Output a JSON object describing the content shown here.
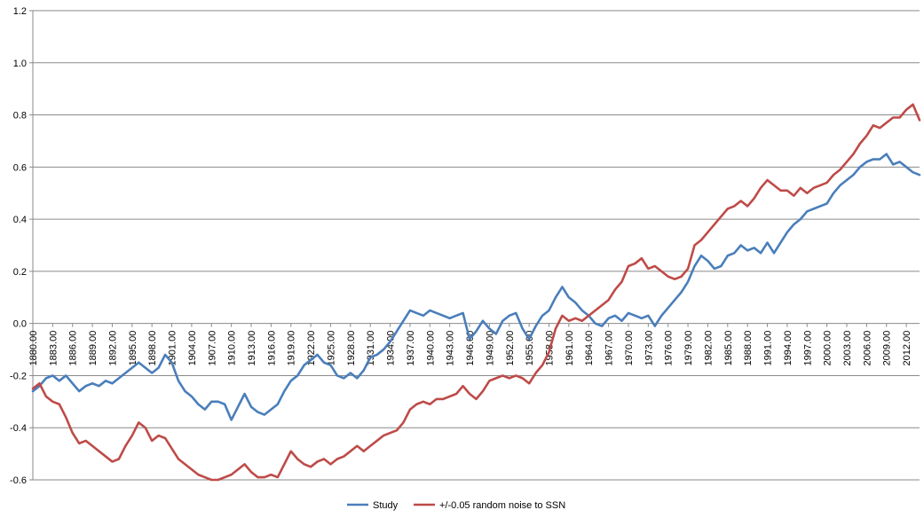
{
  "chart_data": {
    "type": "line",
    "title": "",
    "xlabel": "",
    "ylabel": "",
    "ylim": [
      -0.6,
      1.2
    ],
    "yticks": [
      1.2,
      1.0,
      0.8,
      0.6,
      0.4,
      0.2,
      0.0,
      -0.2,
      -0.4,
      -0.6
    ],
    "ytick_labels": [
      "1.2",
      "1.0",
      "0.8",
      "0.6",
      "0.4",
      "0.2",
      "0.0",
      "-0.2",
      "-0.4",
      "-0.6"
    ],
    "xlim": [
      1880,
      2014
    ],
    "xticks": [
      1880,
      1883,
      1886,
      1889,
      1892,
      1895,
      1898,
      1901,
      1904,
      1907,
      1910,
      1913,
      1916,
      1919,
      1922,
      1925,
      1928,
      1931,
      1934,
      1937,
      1940,
      1943,
      1946,
      1949,
      1952,
      1955,
      1958,
      1961,
      1964,
      1967,
      1970,
      1973,
      1976,
      1979,
      1982,
      1985,
      1988,
      1991,
      1994,
      1997,
      2000,
      2003,
      2006,
      2009,
      2012
    ],
    "xtick_labels": [
      "1880.00",
      "1883.00",
      "1886.00",
      "1889.00",
      "1892.00",
      "1895.00",
      "1898.00",
      "1901.00",
      "1904.00",
      "1907.00",
      "1910.00",
      "1913.00",
      "1916.00",
      "1919.00",
      "1922.00",
      "1925.00",
      "1928.00",
      "1931.00",
      "1934.00",
      "1937.00",
      "1940.00",
      "1943.00",
      "1946.00",
      "1949.00",
      "1952.00",
      "1955.00",
      "1958.00",
      "1961.00",
      "1964.00",
      "1967.00",
      "1970.00",
      "1973.00",
      "1976.00",
      "1979.00",
      "1982.00",
      "1985.00",
      "1988.00",
      "1991.00",
      "1994.00",
      "1997.00",
      "2000.00",
      "2003.00",
      "2006.00",
      "2009.00",
      "2012.00"
    ],
    "grid": true,
    "legend_position": "bottom",
    "series": [
      {
        "name": "Study",
        "color": "#4a7ebb",
        "points": [
          [
            1880,
            -0.26
          ],
          [
            1881,
            -0.24
          ],
          [
            1882,
            -0.21
          ],
          [
            1883,
            -0.2
          ],
          [
            1884,
            -0.22
          ],
          [
            1885,
            -0.2
          ],
          [
            1886,
            -0.23
          ],
          [
            1887,
            -0.26
          ],
          [
            1888,
            -0.24
          ],
          [
            1889,
            -0.23
          ],
          [
            1890,
            -0.24
          ],
          [
            1891,
            -0.22
          ],
          [
            1892,
            -0.23
          ],
          [
            1893,
            -0.21
          ],
          [
            1894,
            -0.19
          ],
          [
            1895,
            -0.17
          ],
          [
            1896,
            -0.15
          ],
          [
            1897,
            -0.17
          ],
          [
            1898,
            -0.19
          ],
          [
            1899,
            -0.17
          ],
          [
            1900,
            -0.12
          ],
          [
            1901,
            -0.15
          ],
          [
            1902,
            -0.22
          ],
          [
            1903,
            -0.26
          ],
          [
            1904,
            -0.28
          ],
          [
            1905,
            -0.31
          ],
          [
            1906,
            -0.33
          ],
          [
            1907,
            -0.3
          ],
          [
            1908,
            -0.3
          ],
          [
            1909,
            -0.31
          ],
          [
            1910,
            -0.37
          ],
          [
            1911,
            -0.32
          ],
          [
            1912,
            -0.27
          ],
          [
            1913,
            -0.32
          ],
          [
            1914,
            -0.34
          ],
          [
            1915,
            -0.35
          ],
          [
            1916,
            -0.33
          ],
          [
            1917,
            -0.31
          ],
          [
            1918,
            -0.26
          ],
          [
            1919,
            -0.22
          ],
          [
            1920,
            -0.2
          ],
          [
            1921,
            -0.16
          ],
          [
            1922,
            -0.14
          ],
          [
            1923,
            -0.12
          ],
          [
            1924,
            -0.15
          ],
          [
            1925,
            -0.16
          ],
          [
            1926,
            -0.2
          ],
          [
            1927,
            -0.21
          ],
          [
            1928,
            -0.19
          ],
          [
            1929,
            -0.21
          ],
          [
            1930,
            -0.18
          ],
          [
            1931,
            -0.13
          ],
          [
            1932,
            -0.12
          ],
          [
            1933,
            -0.1
          ],
          [
            1934,
            -0.07
          ],
          [
            1935,
            -0.03
          ],
          [
            1936,
            0.01
          ],
          [
            1937,
            0.05
          ],
          [
            1938,
            0.04
          ],
          [
            1939,
            0.03
          ],
          [
            1940,
            0.05
          ],
          [
            1941,
            0.04
          ],
          [
            1942,
            0.03
          ],
          [
            1943,
            0.02
          ],
          [
            1944,
            0.03
          ],
          [
            1945,
            0.04
          ],
          [
            1946,
            -0.06
          ],
          [
            1947,
            -0.03
          ],
          [
            1948,
            0.01
          ],
          [
            1949,
            -0.02
          ],
          [
            1950,
            -0.04
          ],
          [
            1951,
            0.01
          ],
          [
            1952,
            0.03
          ],
          [
            1953,
            0.04
          ],
          [
            1954,
            -0.02
          ],
          [
            1955,
            -0.06
          ],
          [
            1956,
            -0.01
          ],
          [
            1957,
            0.03
          ],
          [
            1958,
            0.05
          ],
          [
            1959,
            0.1
          ],
          [
            1960,
            0.14
          ],
          [
            1961,
            0.1
          ],
          [
            1962,
            0.08
          ],
          [
            1963,
            0.05
          ],
          [
            1964,
            0.03
          ],
          [
            1965,
            0.0
          ],
          [
            1966,
            -0.01
          ],
          [
            1967,
            0.02
          ],
          [
            1968,
            0.03
          ],
          [
            1969,
            0.01
          ],
          [
            1970,
            0.04
          ],
          [
            1971,
            0.03
          ],
          [
            1972,
            0.02
          ],
          [
            1973,
            0.03
          ],
          [
            1974,
            -0.01
          ],
          [
            1975,
            0.03
          ],
          [
            1976,
            0.06
          ],
          [
            1977,
            0.09
          ],
          [
            1978,
            0.12
          ],
          [
            1979,
            0.16
          ],
          [
            1980,
            0.22
          ],
          [
            1981,
            0.26
          ],
          [
            1982,
            0.24
          ],
          [
            1983,
            0.21
          ],
          [
            1984,
            0.22
          ],
          [
            1985,
            0.26
          ],
          [
            1986,
            0.27
          ],
          [
            1987,
            0.3
          ],
          [
            1988,
            0.28
          ],
          [
            1989,
            0.29
          ],
          [
            1990,
            0.27
          ],
          [
            1991,
            0.31
          ],
          [
            1992,
            0.27
          ],
          [
            1993,
            0.31
          ],
          [
            1994,
            0.35
          ],
          [
            1995,
            0.38
          ],
          [
            1996,
            0.4
          ],
          [
            1997,
            0.43
          ],
          [
            1998,
            0.44
          ],
          [
            1999,
            0.45
          ],
          [
            2000,
            0.46
          ],
          [
            2001,
            0.5
          ],
          [
            2002,
            0.53
          ],
          [
            2003,
            0.55
          ],
          [
            2004,
            0.57
          ],
          [
            2005,
            0.6
          ],
          [
            2006,
            0.62
          ],
          [
            2007,
            0.63
          ],
          [
            2008,
            0.63
          ],
          [
            2009,
            0.65
          ],
          [
            2010,
            0.61
          ],
          [
            2011,
            0.62
          ],
          [
            2012,
            0.6
          ],
          [
            2013,
            0.58
          ],
          [
            2014,
            0.57
          ]
        ]
      },
      {
        "name": "+/-0.05 random noise to SSN",
        "color": "#be4b48",
        "points": [
          [
            1880,
            -0.25
          ],
          [
            1881,
            -0.23
          ],
          [
            1882,
            -0.28
          ],
          [
            1883,
            -0.3
          ],
          [
            1884,
            -0.31
          ],
          [
            1885,
            -0.36
          ],
          [
            1886,
            -0.42
          ],
          [
            1887,
            -0.46
          ],
          [
            1888,
            -0.45
          ],
          [
            1889,
            -0.47
          ],
          [
            1890,
            -0.49
          ],
          [
            1891,
            -0.51
          ],
          [
            1892,
            -0.53
          ],
          [
            1893,
            -0.52
          ],
          [
            1894,
            -0.47
          ],
          [
            1895,
            -0.43
          ],
          [
            1896,
            -0.38
          ],
          [
            1897,
            -0.4
          ],
          [
            1898,
            -0.45
          ],
          [
            1899,
            -0.43
          ],
          [
            1900,
            -0.44
          ],
          [
            1901,
            -0.48
          ],
          [
            1902,
            -0.52
          ],
          [
            1903,
            -0.54
          ],
          [
            1904,
            -0.56
          ],
          [
            1905,
            -0.58
          ],
          [
            1906,
            -0.59
          ],
          [
            1907,
            -0.6
          ],
          [
            1908,
            -0.6
          ],
          [
            1909,
            -0.59
          ],
          [
            1910,
            -0.58
          ],
          [
            1911,
            -0.56
          ],
          [
            1912,
            -0.54
          ],
          [
            1913,
            -0.57
          ],
          [
            1914,
            -0.59
          ],
          [
            1915,
            -0.59
          ],
          [
            1916,
            -0.58
          ],
          [
            1917,
            -0.59
          ],
          [
            1918,
            -0.54
          ],
          [
            1919,
            -0.49
          ],
          [
            1920,
            -0.52
          ],
          [
            1921,
            -0.54
          ],
          [
            1922,
            -0.55
          ],
          [
            1923,
            -0.53
          ],
          [
            1924,
            -0.52
          ],
          [
            1925,
            -0.54
          ],
          [
            1926,
            -0.52
          ],
          [
            1927,
            -0.51
          ],
          [
            1928,
            -0.49
          ],
          [
            1929,
            -0.47
          ],
          [
            1930,
            -0.49
          ],
          [
            1931,
            -0.47
          ],
          [
            1932,
            -0.45
          ],
          [
            1933,
            -0.43
          ],
          [
            1934,
            -0.42
          ],
          [
            1935,
            -0.41
          ],
          [
            1936,
            -0.38
          ],
          [
            1937,
            -0.33
          ],
          [
            1938,
            -0.31
          ],
          [
            1939,
            -0.3
          ],
          [
            1940,
            -0.31
          ],
          [
            1941,
            -0.29
          ],
          [
            1942,
            -0.29
          ],
          [
            1943,
            -0.28
          ],
          [
            1944,
            -0.27
          ],
          [
            1945,
            -0.24
          ],
          [
            1946,
            -0.27
          ],
          [
            1947,
            -0.29
          ],
          [
            1948,
            -0.26
          ],
          [
            1949,
            -0.22
          ],
          [
            1950,
            -0.21
          ],
          [
            1951,
            -0.2
          ],
          [
            1952,
            -0.21
          ],
          [
            1953,
            -0.2
          ],
          [
            1954,
            -0.21
          ],
          [
            1955,
            -0.23
          ],
          [
            1956,
            -0.19
          ],
          [
            1957,
            -0.16
          ],
          [
            1958,
            -0.11
          ],
          [
            1959,
            -0.02
          ],
          [
            1960,
            0.03
          ],
          [
            1961,
            0.01
          ],
          [
            1962,
            0.02
          ],
          [
            1963,
            0.01
          ],
          [
            1964,
            0.03
          ],
          [
            1965,
            0.05
          ],
          [
            1966,
            0.07
          ],
          [
            1967,
            0.09
          ],
          [
            1968,
            0.13
          ],
          [
            1969,
            0.16
          ],
          [
            1970,
            0.22
          ],
          [
            1971,
            0.23
          ],
          [
            1972,
            0.25
          ],
          [
            1973,
            0.21
          ],
          [
            1974,
            0.22
          ],
          [
            1975,
            0.2
          ],
          [
            1976,
            0.18
          ],
          [
            1977,
            0.17
          ],
          [
            1978,
            0.18
          ],
          [
            1979,
            0.21
          ],
          [
            1980,
            0.3
          ],
          [
            1981,
            0.32
          ],
          [
            1982,
            0.35
          ],
          [
            1983,
            0.38
          ],
          [
            1984,
            0.41
          ],
          [
            1985,
            0.44
          ],
          [
            1986,
            0.45
          ],
          [
            1987,
            0.47
          ],
          [
            1988,
            0.45
          ],
          [
            1989,
            0.48
          ],
          [
            1990,
            0.52
          ],
          [
            1991,
            0.55
          ],
          [
            1992,
            0.53
          ],
          [
            1993,
            0.51
          ],
          [
            1994,
            0.51
          ],
          [
            1995,
            0.49
          ],
          [
            1996,
            0.52
          ],
          [
            1997,
            0.5
          ],
          [
            1998,
            0.52
          ],
          [
            1999,
            0.53
          ],
          [
            2000,
            0.54
          ],
          [
            2001,
            0.57
          ],
          [
            2002,
            0.59
          ],
          [
            2003,
            0.62
          ],
          [
            2004,
            0.65
          ],
          [
            2005,
            0.69
          ],
          [
            2006,
            0.72
          ],
          [
            2007,
            0.76
          ],
          [
            2008,
            0.75
          ],
          [
            2009,
            0.77
          ],
          [
            2010,
            0.79
          ],
          [
            2011,
            0.79
          ],
          [
            2012,
            0.82
          ],
          [
            2013,
            0.84
          ],
          [
            2014,
            0.78
          ]
        ]
      }
    ]
  }
}
